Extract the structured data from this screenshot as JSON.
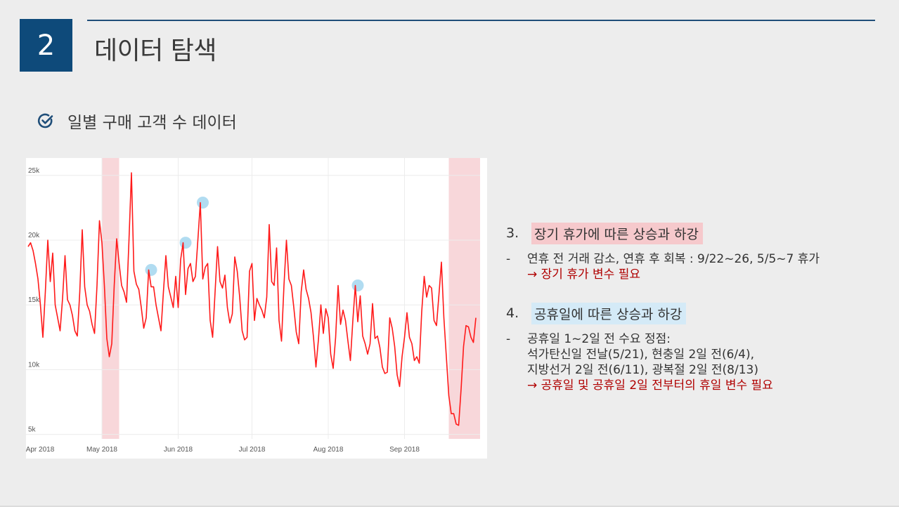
{
  "header": {
    "section_number": "2",
    "title": "데이터 탐색"
  },
  "subheading": {
    "icon": "check-circle-icon",
    "text": "일별 구매 고객 수 데이터"
  },
  "chart_data": {
    "type": "line",
    "title": "",
    "xlabel": "",
    "ylabel": "",
    "x_ticks": [
      "Apr 2018",
      "May 2018",
      "Jun 2018",
      "Jul 2018",
      "Aug 2018",
      "Sep 2018"
    ],
    "x_start": "2018-04-01",
    "x_end": "2018-09-30",
    "y_ticks": [
      "5k",
      "10k",
      "15k",
      "20k",
      "25k"
    ],
    "ylim": [
      4600,
      25800
    ],
    "grid": true,
    "line_color": "#ff1a1a",
    "highlight_color": "#f8d7da",
    "marker_color": "#a8d8f0",
    "shaded_ranges": [
      {
        "start": "2018-05-01",
        "end": "2018-05-08"
      },
      {
        "start": "2018-09-19",
        "end": "2018-10-04"
      }
    ],
    "markers": [
      {
        "date": "2018-05-21",
        "value": 17700
      },
      {
        "date": "2018-06-04",
        "value": 19800
      },
      {
        "date": "2018-06-11",
        "value": 22900
      },
      {
        "date": "2018-08-13",
        "value": 16500
      }
    ],
    "series": [
      {
        "values": [
          19500,
          19800,
          19200,
          18200,
          17000,
          15000,
          12500,
          16000,
          20000,
          16800,
          19000,
          15000,
          14000,
          13000,
          15500,
          18800,
          15400,
          15000,
          14200,
          13000,
          12600,
          16000,
          20800,
          16400,
          15000,
          14500,
          13500,
          12800,
          16500,
          21500,
          19800,
          16500,
          12400,
          11000,
          12000,
          16500,
          20100,
          18200,
          16500,
          16000,
          15200,
          20000,
          25200,
          17600,
          16600,
          16200,
          14800,
          13200,
          14000,
          17700,
          16400,
          16400,
          15000,
          14000,
          13000,
          16000,
          18800,
          16400,
          15600,
          14800,
          17200,
          14800,
          18500,
          19800,
          15800,
          17800,
          18200,
          16800,
          17200,
          20000,
          22900,
          17000,
          17900,
          18200,
          13800,
          12500,
          16000,
          19500,
          16800,
          16300,
          17300,
          14800,
          13600,
          14300,
          18700,
          17600,
          15600,
          13000,
          12300,
          12500,
          17600,
          18200,
          13800,
          15500,
          15000,
          14600,
          14000,
          15600,
          21200,
          16800,
          16500,
          19400,
          13800,
          12200,
          16500,
          20000,
          17000,
          16500,
          14800,
          12900,
          12000,
          16000,
          17700,
          16200,
          15500,
          14400,
          12500,
          10200,
          12300,
          15000,
          12800,
          14700,
          14000,
          11200,
          10100,
          12500,
          16500,
          13500,
          14600,
          13800,
          12200,
          10700,
          13800,
          16500,
          13700,
          15700,
          12600,
          12000,
          11200,
          12000,
          15100,
          12400,
          12600,
          11700,
          10200,
          9700,
          9800,
          14000,
          13200,
          11800,
          9600,
          8700,
          11000,
          12500,
          14400,
          12500,
          12000,
          10700,
          11000,
          10500,
          14500,
          17200,
          15600,
          16500,
          16300,
          13800,
          13400,
          15800,
          18300,
          14000,
          11000,
          8000,
          6600,
          6600,
          5800,
          5700,
          8500,
          11800,
          13400,
          13300,
          12500,
          12100,
          14000
        ]
      }
    ]
  },
  "notes": [
    {
      "number": "3.",
      "heading": "장기 휴가에 따른 상승과 하강",
      "lines": [
        "연휴 전 거래 감소, 연휴 후 회복 : 9/22~26, 5/5~7 휴가"
      ],
      "conclusion": "→ 장기 휴가 변수 필요"
    },
    {
      "number": "4.",
      "heading": "공휴일에 따른 상승과 하강",
      "lines": [
        "공휴일 1~2일 전 수요 정점:",
        "석가탄신일 전날(5/21), 현충일 2일 전(6/4),",
        "지방선거 2일 전(6/11), 광복절 2일 전(8/13)"
      ],
      "conclusion": "→ 공휴일 및 공휴일 2일 전부터의 휴일 변수 필요"
    }
  ],
  "bullet_dash": "-"
}
